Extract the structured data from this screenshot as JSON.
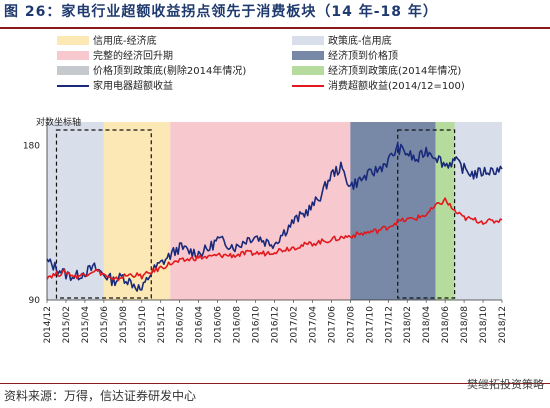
{
  "figure": {
    "title": "图 26：家电行业超额收益拐点领先于消费板块（14 年-18 年）",
    "source": "资料来源：万得，信达证券研发中心",
    "watermark": "樊继拓投资策略"
  },
  "chart_data": {
    "type": "line",
    "yaxis_label": "对数坐标轴",
    "ylim": [
      90,
      200
    ],
    "yticks": [
      90,
      180
    ],
    "log_scale": true,
    "x_tick_labels": [
      "2014/12",
      "2015/02",
      "2015/04",
      "2015/06",
      "2015/08",
      "2015/10",
      "2015/12",
      "2016/02",
      "2016/04",
      "2016/06",
      "2016/08",
      "2016/10",
      "2016/12",
      "2017/02",
      "2017/04",
      "2017/06",
      "2017/08",
      "2017/10",
      "2017/12",
      "2018/02",
      "2018/04",
      "2018/06",
      "2018/08",
      "2018/10",
      "2018/12"
    ],
    "regions": [
      {
        "name": "信用底-经济底",
        "color": "#fbe8b4",
        "start": "2015/06",
        "end": "2016/01"
      },
      {
        "name": "政策底-信用底",
        "color": "#d9dfea",
        "start": "2014/12",
        "end": "2015/06"
      },
      {
        "name": "政策底-信用底",
        "color": "#d9dfea",
        "start": "2018/07",
        "end": "2018/12"
      },
      {
        "name": "完整的经济回升期",
        "color": "#f8c8cf",
        "start": "2016/01",
        "end": "2017/08"
      },
      {
        "name": "经济顶到价格顶",
        "color": "#7889a8",
        "start": "2017/08",
        "end": "2018/05"
      },
      {
        "name": "价格顶到政策底(剔除2014年情况)",
        "color": "#c5c8cc",
        "start": "2018/07",
        "end": "2018/07"
      },
      {
        "name": "经济顶到政策底(2014年情况)",
        "color": "#b5db9d",
        "start": "2018/05",
        "end": "2018/07"
      }
    ],
    "dashed_boxes": [
      {
        "start": "2015/01",
        "end": "2015/11"
      },
      {
        "start": "2018/01",
        "end": "2018/07"
      }
    ],
    "series": [
      {
        "name": "家用电器超额收益",
        "color": "#1a2a7a",
        "x": [
          "2014/12",
          "2015/01",
          "2015/02",
          "2015/03",
          "2015/04",
          "2015/05",
          "2015/06",
          "2015/07",
          "2015/08",
          "2015/09",
          "2015/10",
          "2015/11",
          "2015/12",
          "2016/01",
          "2016/02",
          "2016/03",
          "2016/04",
          "2016/05",
          "2016/06",
          "2016/07",
          "2016/08",
          "2016/09",
          "2016/10",
          "2016/11",
          "2016/12",
          "2017/01",
          "2017/02",
          "2017/03",
          "2017/04",
          "2017/05",
          "2017/06",
          "2017/07",
          "2017/08",
          "2017/09",
          "2017/10",
          "2017/11",
          "2017/12",
          "2018/01",
          "2018/02",
          "2018/03",
          "2018/04",
          "2018/05",
          "2018/06",
          "2018/07",
          "2018/08",
          "2018/09",
          "2018/10",
          "2018/11",
          "2018/12"
        ],
        "values": [
          107,
          104,
          101,
          100,
          102,
          104,
          101,
          98,
          100,
          97,
          94,
          102,
          106,
          110,
          114,
          112,
          111,
          113,
          118,
          116,
          114,
          118,
          120,
          117,
          116,
          122,
          128,
          132,
          137,
          145,
          158,
          163,
          150,
          154,
          158,
          162,
          168,
          178,
          174,
          168,
          176,
          172,
          165,
          168,
          162,
          158,
          160,
          161,
          162
        ]
      },
      {
        "name": "消费超额收益(2014/12=100)",
        "color": "#e1191e",
        "x": [
          "2014/12",
          "2015/01",
          "2015/02",
          "2015/03",
          "2015/04",
          "2015/05",
          "2015/06",
          "2015/07",
          "2015/08",
          "2015/09",
          "2015/10",
          "2015/11",
          "2015/12",
          "2016/01",
          "2016/02",
          "2016/03",
          "2016/04",
          "2016/05",
          "2016/06",
          "2016/07",
          "2016/08",
          "2016/09",
          "2016/10",
          "2016/11",
          "2016/12",
          "2017/01",
          "2017/02",
          "2017/03",
          "2017/04",
          "2017/05",
          "2017/06",
          "2017/07",
          "2017/08",
          "2017/09",
          "2017/10",
          "2017/11",
          "2017/12",
          "2018/01",
          "2018/02",
          "2018/03",
          "2018/04",
          "2018/05",
          "2018/06",
          "2018/07",
          "2018/08",
          "2018/09",
          "2018/10",
          "2018/11",
          "2018/12"
        ],
        "values": [
          100,
          101,
          102,
          100,
          101,
          103,
          101,
          98,
          100,
          101,
          100,
          102,
          104,
          106,
          107,
          108,
          109,
          109,
          110,
          110,
          110,
          111,
          111,
          111,
          112,
          113,
          114,
          115,
          116,
          117,
          118,
          119,
          120,
          121,
          122,
          123,
          125,
          128,
          129,
          130,
          132,
          137,
          141,
          134,
          130,
          129,
          128,
          128,
          129
        ]
      }
    ]
  }
}
